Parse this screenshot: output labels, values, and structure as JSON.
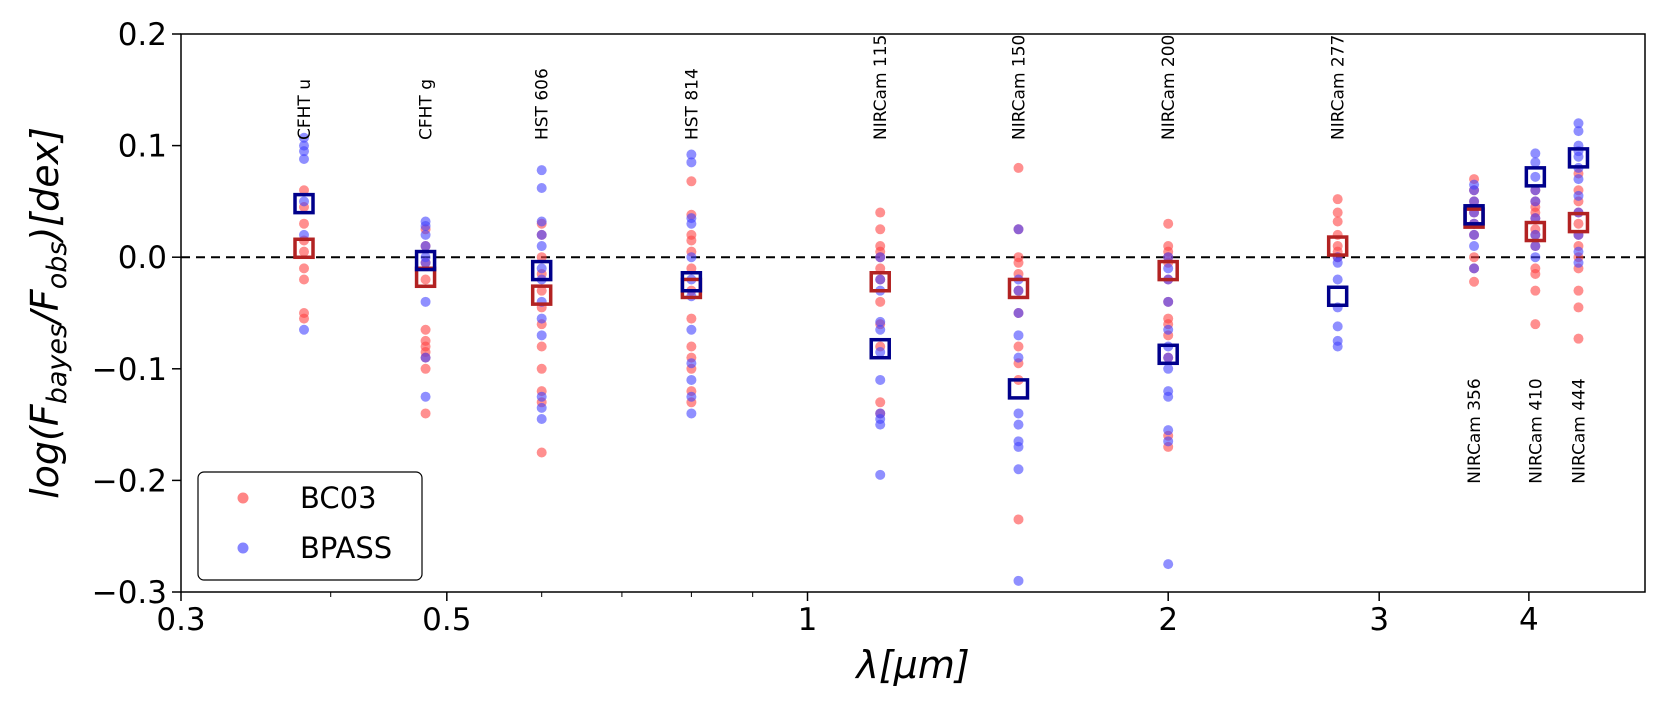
{
  "chart_data": {
    "type": "scatter",
    "xscale": "log",
    "xlim": [
      0.3,
      5.0
    ],
    "ylim": [
      -0.3,
      0.2
    ],
    "xlabel": "λ[μm]",
    "ylabel": "log(F_bayes/F_obs)[dex]",
    "ylabel_parts": {
      "pre": "log(F",
      "sub1": "bayes",
      "mid": "/F",
      "sub2": "obs",
      "post": ")[dex]"
    },
    "x_ticks": [
      {
        "value": 0.3,
        "label": "0.3"
      },
      {
        "value": 0.5,
        "label": "0.5"
      },
      {
        "value": 1,
        "label": "1"
      },
      {
        "value": 2,
        "label": "2"
      },
      {
        "value": 3,
        "label": "3"
      },
      {
        "value": 4,
        "label": "4"
      }
    ],
    "x_minor_ticks": [
      0.4,
      0.6,
      0.7,
      0.8,
      0.9
    ],
    "y_ticks": [
      {
        "value": 0.2,
        "label": "0.2"
      },
      {
        "value": 0.1,
        "label": "0.1"
      },
      {
        "value": 0.0,
        "label": "0.0"
      },
      {
        "value": -0.1,
        "label": "−0.1"
      },
      {
        "value": -0.2,
        "label": "−0.2"
      },
      {
        "value": -0.3,
        "label": "−0.3"
      }
    ],
    "reference_line": {
      "y": 0.0,
      "style": "dashed"
    },
    "legend": {
      "placement": "bottom-left",
      "entries": [
        {
          "label": "BC03",
          "color": "#ff4444"
        },
        {
          "label": "BPASS",
          "color": "#4444ff"
        }
      ]
    },
    "colors": {
      "BC03_point": "#ff4444",
      "BPASS_point": "#4444ff",
      "BC03_median": "#b22222",
      "BPASS_median": "#00008b"
    },
    "bands": [
      {
        "label": "CFHT u",
        "wavelength": 0.38,
        "label_position": "top",
        "BC03": [
          0.06,
          0.045,
          0.03,
          0.015,
          0.005,
          -0.01,
          -0.02,
          -0.05,
          -0.055
        ],
        "BPASS": [
          0.107,
          0.1,
          0.095,
          0.088,
          0.05,
          0.02,
          -0.065
        ],
        "BC03_median": 0.008,
        "BPASS_median": 0.048
      },
      {
        "label": "CFHT g",
        "wavelength": 0.48,
        "label_position": "top",
        "BC03": [
          0.025,
          0.01,
          -0.005,
          -0.02,
          -0.065,
          -0.075,
          -0.08,
          -0.085,
          -0.09,
          -0.1,
          -0.14
        ],
        "BPASS": [
          0.032,
          0.028,
          0.02,
          0.01,
          0.0,
          -0.005,
          -0.04,
          -0.09,
          -0.125
        ],
        "BC03_median": -0.018,
        "BPASS_median": -0.003
      },
      {
        "label": "HST 606",
        "wavelength": 0.6,
        "label_position": "top",
        "BC03": [
          0.03,
          0.02,
          0.0,
          -0.015,
          -0.03,
          -0.045,
          -0.06,
          -0.08,
          -0.1,
          -0.12,
          -0.13,
          -0.175
        ],
        "BPASS": [
          0.078,
          0.062,
          0.032,
          0.02,
          0.01,
          -0.01,
          -0.02,
          -0.04,
          -0.055,
          -0.07,
          -0.125,
          -0.135,
          -0.145
        ],
        "BC03_median": -0.034,
        "BPASS_median": -0.012
      },
      {
        "label": "HST 814",
        "wavelength": 0.8,
        "label_position": "top",
        "BC03": [
          0.068,
          0.038,
          0.02,
          0.015,
          0.005,
          -0.01,
          -0.03,
          -0.055,
          -0.08,
          -0.09,
          -0.1,
          -0.12,
          -0.13
        ],
        "BPASS": [
          0.092,
          0.085,
          0.035,
          0.03,
          0.0,
          -0.02,
          -0.035,
          -0.065,
          -0.095,
          -0.11,
          -0.125,
          -0.14
        ],
        "BC03_median": -0.028,
        "BPASS_median": -0.022
      },
      {
        "label": "NIRCam 115",
        "wavelength": 1.15,
        "label_position": "top",
        "BC03": [
          0.04,
          0.025,
          0.01,
          0.005,
          0.0,
          -0.01,
          -0.02,
          -0.04,
          -0.06,
          -0.08,
          -0.13,
          -0.14
        ],
        "BPASS": [
          0.0,
          -0.02,
          -0.03,
          -0.058,
          -0.065,
          -0.085,
          -0.11,
          -0.14,
          -0.145,
          -0.15,
          -0.195
        ],
        "BC03_median": -0.022,
        "BPASS_median": -0.082
      },
      {
        "label": "NIRCam 150",
        "wavelength": 1.5,
        "label_position": "top",
        "BC03": [
          0.08,
          0.025,
          0.0,
          -0.005,
          -0.015,
          -0.03,
          -0.05,
          -0.08,
          -0.095,
          -0.11,
          -0.235
        ],
        "BPASS": [
          0.025,
          -0.02,
          -0.03,
          -0.05,
          -0.07,
          -0.09,
          -0.14,
          -0.15,
          -0.165,
          -0.17,
          -0.19,
          -0.29
        ],
        "BC03_median": -0.028,
        "BPASS_median": -0.118
      },
      {
        "label": "NIRCam 200",
        "wavelength": 2.0,
        "label_position": "top",
        "BC03": [
          0.03,
          0.01,
          0.005,
          0.0,
          -0.005,
          -0.02,
          -0.04,
          -0.055,
          -0.06,
          -0.07,
          -0.09,
          -0.16,
          -0.17
        ],
        "BPASS": [
          0.0,
          -0.01,
          -0.02,
          -0.04,
          -0.065,
          -0.08,
          -0.09,
          -0.1,
          -0.12,
          -0.125,
          -0.155,
          -0.165,
          -0.275
        ],
        "BC03_median": -0.012,
        "BPASS_median": -0.087
      },
      {
        "label": "NIRCam 277",
        "wavelength": 2.77,
        "label_position": "top",
        "BC03": [
          0.052,
          0.04,
          0.032,
          0.02,
          0.01,
          0.005,
          0.0
        ],
        "BPASS": [
          0.0,
          -0.005,
          -0.02,
          -0.045,
          -0.062,
          -0.075,
          -0.08
        ],
        "BC03_median": 0.01,
        "BPASS_median": -0.035
      },
      {
        "label": "NIRCam 356",
        "wavelength": 3.6,
        "label_position": "bottom",
        "BC03": [
          0.07,
          0.06,
          0.05,
          0.04,
          0.03,
          0.02,
          0.0,
          -0.01,
          -0.022
        ],
        "BPASS": [
          0.065,
          0.06,
          0.05,
          0.04,
          0.03,
          0.02,
          0.01,
          -0.01
        ],
        "BC03_median": 0.035,
        "BPASS_median": 0.038
      },
      {
        "label": "NIRCam 410",
        "wavelength": 4.05,
        "label_position": "bottom",
        "BC03": [
          0.06,
          0.05,
          0.045,
          0.04,
          0.035,
          0.025,
          0.02,
          0.01,
          -0.01,
          -0.015,
          -0.03,
          -0.06
        ],
        "BPASS": [
          0.093,
          0.085,
          0.072,
          0.06,
          0.05,
          0.035,
          0.02,
          0.01,
          0.0
        ],
        "BC03_median": 0.023,
        "BPASS_median": 0.072
      },
      {
        "label": "NIRCam 444",
        "wavelength": 4.4,
        "label_position": "bottom",
        "BC03": [
          0.075,
          0.06,
          0.05,
          0.04,
          0.03,
          0.02,
          0.01,
          0.0,
          -0.01,
          -0.03,
          -0.045,
          -0.073
        ],
        "BPASS": [
          0.12,
          0.113,
          0.1,
          0.095,
          0.09,
          0.08,
          0.07,
          0.055,
          0.04,
          0.02,
          0.005,
          -0.005
        ],
        "BC03_median": 0.031,
        "BPASS_median": 0.089
      }
    ]
  }
}
